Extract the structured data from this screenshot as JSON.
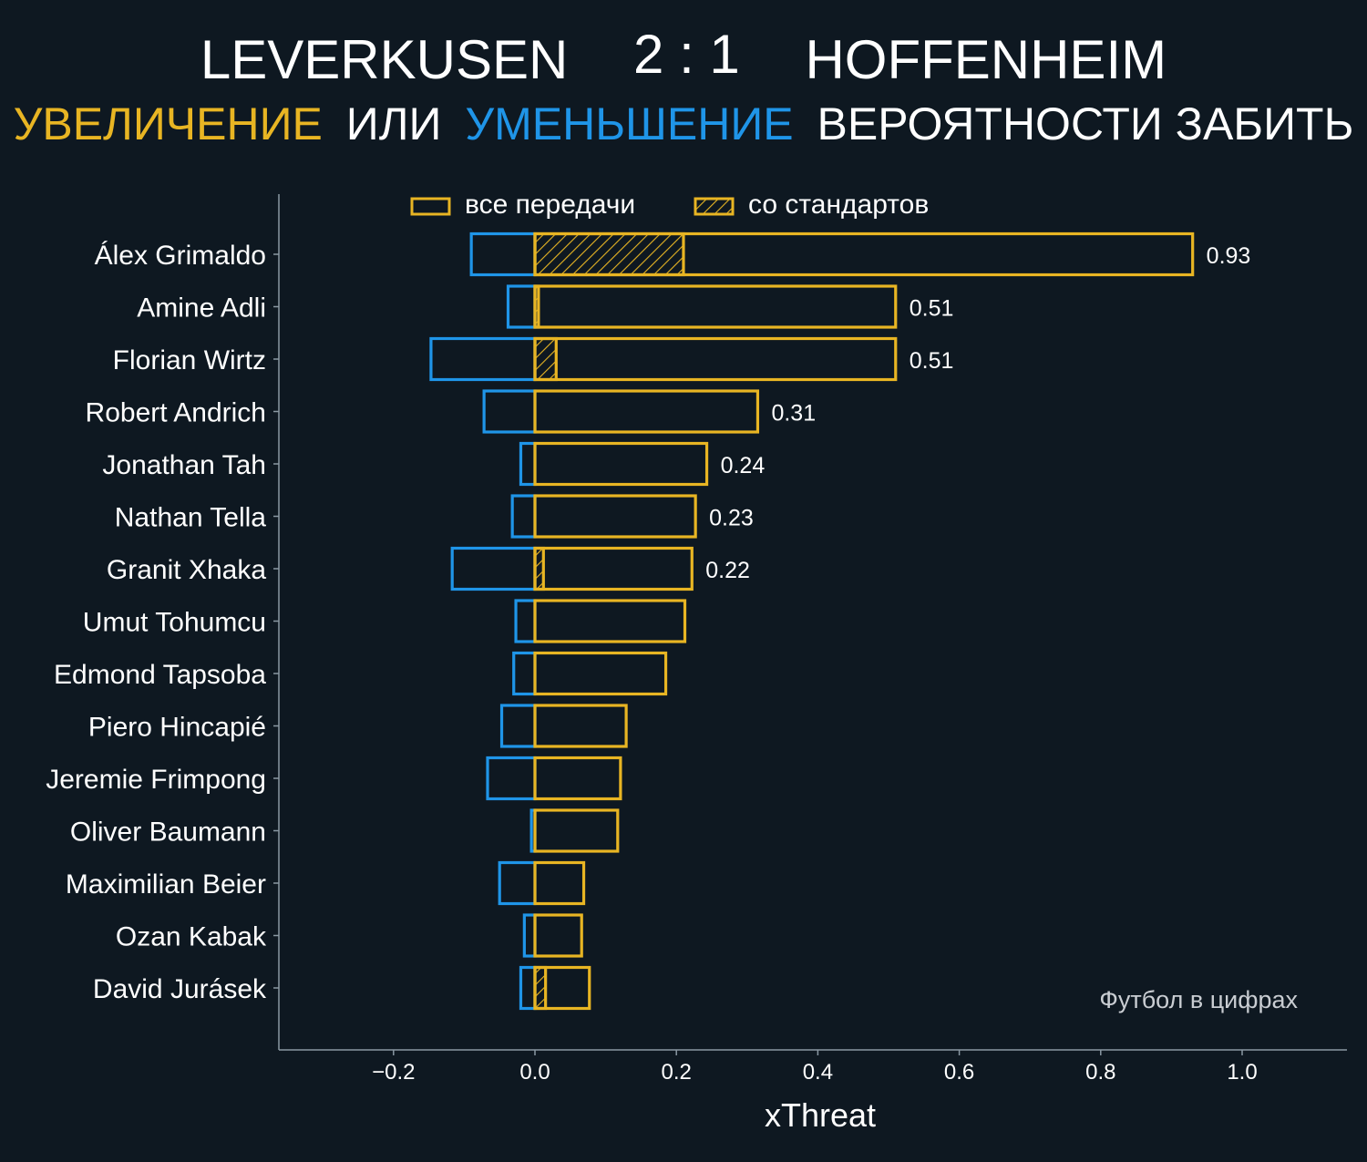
{
  "header": {
    "home_team": "LEVERKUSEN",
    "score": "2 : 1",
    "away_team": "HOFFENHEIM",
    "subtitle_increase": "УВЕЛИЧЕНИЕ",
    "subtitle_or": "ИЛИ",
    "subtitle_decrease": "УМЕНЬШЕНИЕ",
    "subtitle_rest": "ВЕРОЯТНОСТИ ЗАБИТЬ"
  },
  "legend": {
    "all_passes": "все передачи",
    "set_pieces": "со стандартов"
  },
  "watermark": "Футбол в цифрах",
  "colors": {
    "background": "#0e1821",
    "increase": "#e8b523",
    "decrease": "#1f95e8",
    "text": "#ffffff",
    "axis": "#8a98a3",
    "watermark": "#c9cdd2"
  },
  "chart_data": {
    "type": "bar",
    "orientation": "horizontal",
    "xlabel": "xThreat",
    "xlim": [
      -0.36,
      1.15
    ],
    "xticks": [
      -0.2,
      0.0,
      0.2,
      0.4,
      0.6,
      0.8,
      1.0
    ],
    "xtick_labels": [
      "−0.2",
      "0.0",
      "0.2",
      "0.4",
      "0.6",
      "0.8",
      "1.0"
    ],
    "categories": [
      "Álex Grimaldo",
      "Amine Adli",
      "Florian Wirtz",
      "Robert Andrich",
      "Jonathan Tah",
      "Nathan Tella",
      "Granit Xhaka",
      "Umut Tohumcu",
      "Edmond Tapsoba",
      "Piero Hincapié",
      "Jeremie Frimpong",
      "Oliver Baumann",
      "Maximilian Beier",
      "Ozan Kabak",
      "David Jurásek"
    ],
    "series": [
      {
        "name": "увеличение (все передачи)",
        "values": [
          0.93,
          0.51,
          0.51,
          0.315,
          0.243,
          0.227,
          0.222,
          0.212,
          0.185,
          0.129,
          0.121,
          0.117,
          0.069,
          0.066,
          0.077
        ]
      },
      {
        "name": "увеличение (со стандартов)",
        "values": [
          0.21,
          0.005,
          0.03,
          0.0,
          0.0,
          0.0,
          0.012,
          0.0,
          0.0,
          0.0,
          0.0,
          0.0,
          0.0,
          0.0,
          0.015
        ]
      },
      {
        "name": "уменьшение",
        "values": [
          -0.09,
          -0.038,
          -0.147,
          -0.072,
          -0.02,
          -0.032,
          -0.117,
          -0.027,
          -0.03,
          -0.047,
          -0.067,
          -0.005,
          -0.05,
          -0.015,
          -0.02
        ]
      }
    ],
    "value_labels": [
      "0.93",
      "0.51",
      "0.51",
      "0.31",
      "0.24",
      "0.23",
      "0.22",
      "",
      "",
      "",
      "",
      "",
      "",
      "",
      ""
    ]
  }
}
